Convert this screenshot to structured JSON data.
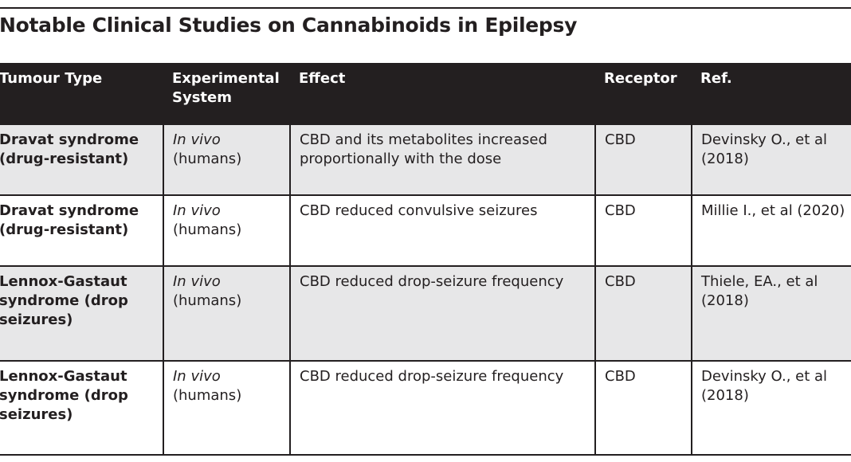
{
  "title": "Notable Clinical Studies on Cannabinoids in Epilepsy",
  "columns": {
    "type": "Tumour Type",
    "system": "Experimental System",
    "effect": "Effect",
    "receptor": "Receptor",
    "ref": "Ref."
  },
  "rows": [
    {
      "type": "Dravat syndrome (drug-resistant)",
      "system_italic": "In vivo",
      "system_rest": "(humans)",
      "effect": "CBD and its metabolites increased proportionally with the dose",
      "receptor": "CBD",
      "ref": "Devinsky O., et al (2018)"
    },
    {
      "type": "Dravat syndrome (drug-resistant)",
      "system_italic": "In vivo",
      "system_rest": "(humans)",
      "effect": "CBD reduced convulsive seizures",
      "receptor": "CBD",
      "ref": "Millie I., et al (2020)"
    },
    {
      "type": "Lennox-Gastaut syndrome (drop seizures)",
      "system_italic": "In vivo",
      "system_rest": "(humans)",
      "effect": "CBD reduced drop-seizure frequency",
      "receptor": "CBD",
      "ref": "Thiele, EA., et al (2018)"
    },
    {
      "type": "Lennox-Gastaut syndrome (drop seizures)",
      "system_italic": "In vivo",
      "system_rest": "(humans)",
      "effect": "CBD reduced drop-seizure frequency",
      "receptor": "CBD",
      "ref": "Devinsky O., et al (2018)"
    }
  ],
  "colors": {
    "header_bg": "#231f20",
    "header_text": "#ffffff",
    "shaded_row": "#e7e7e8",
    "text": "#231f20"
  }
}
